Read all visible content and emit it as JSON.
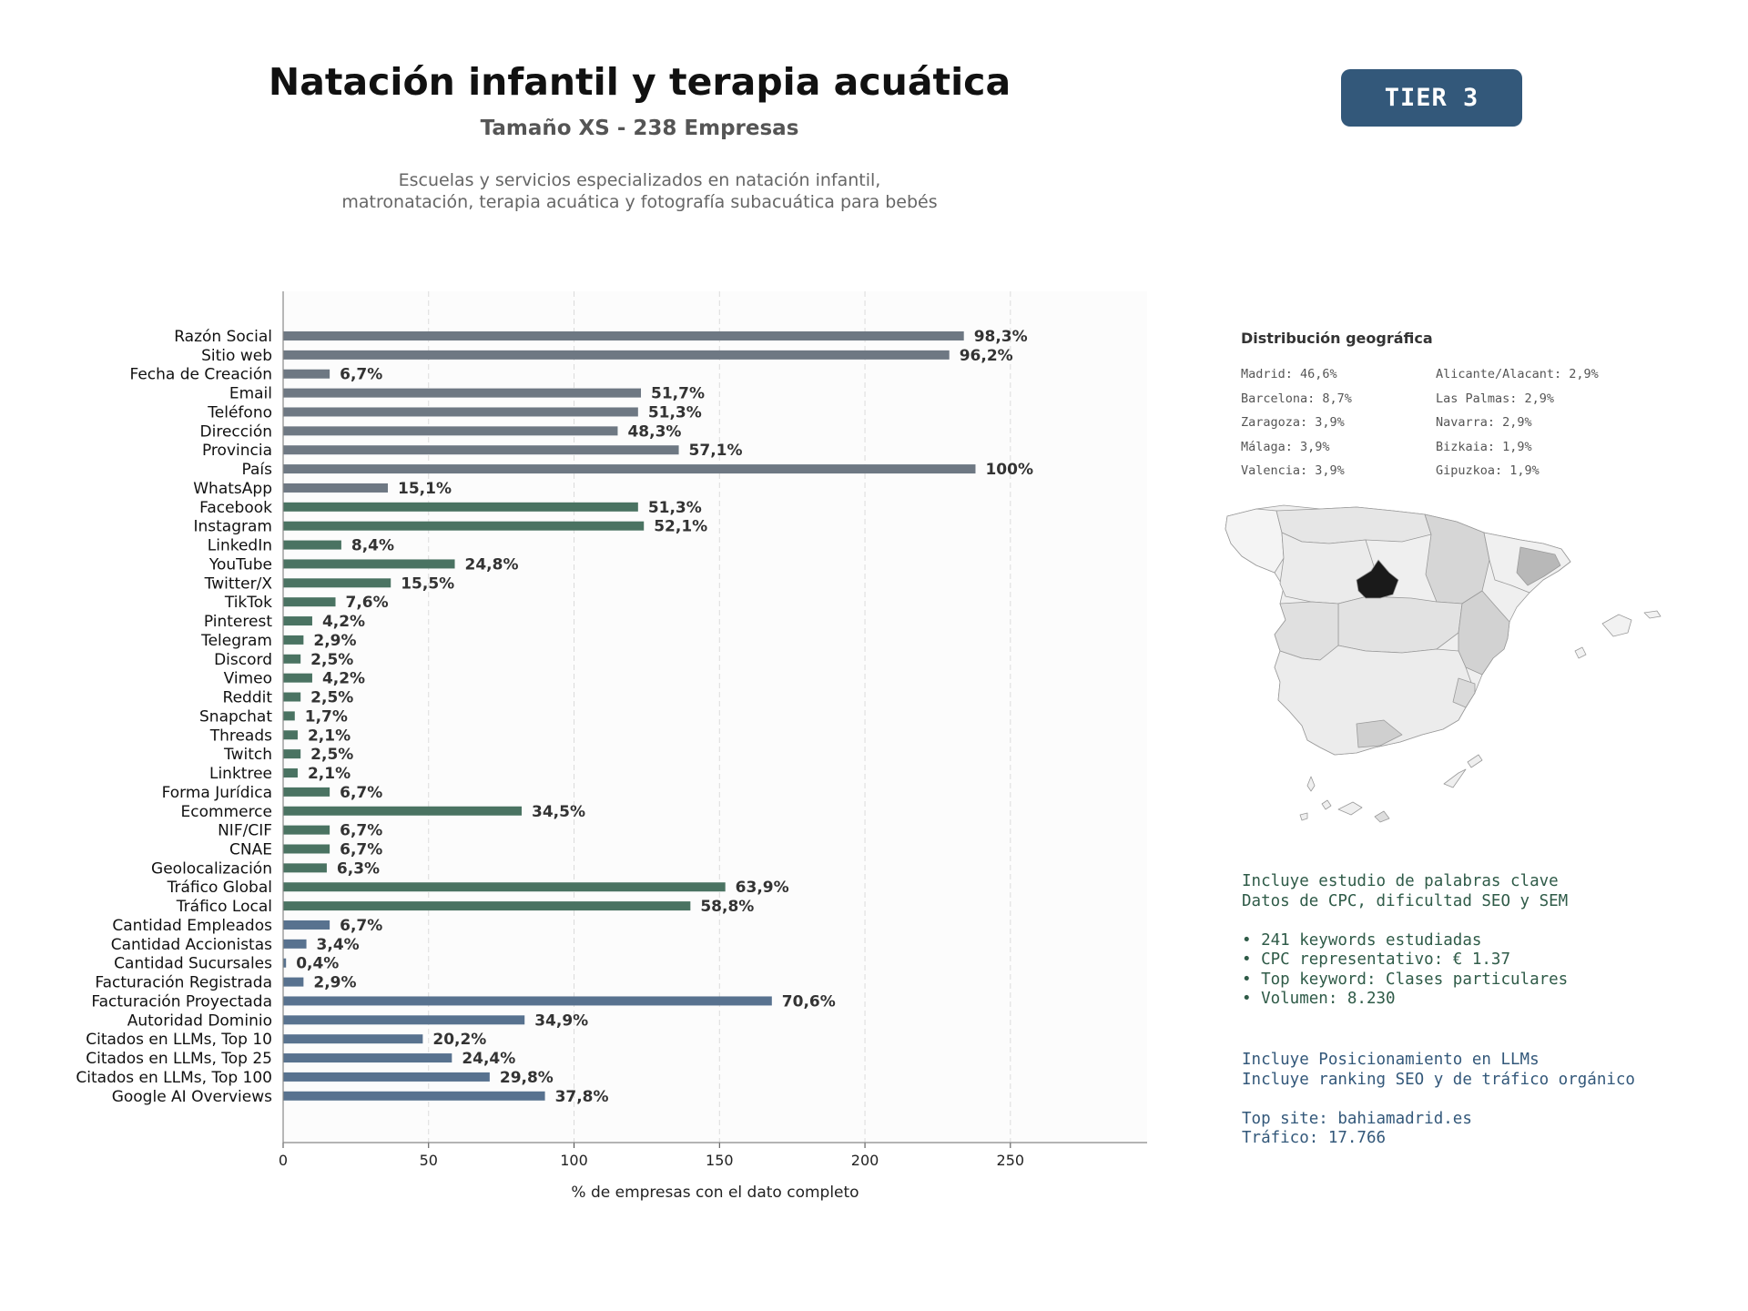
{
  "header": {
    "title": "Natación infantil y terapia acuática",
    "subtitle": "Tamaño XS - 238 Empresas",
    "description_line1": "Escuelas y servicios especializados en natación infantil,",
    "description_line2": "matronatación, terapia acuática y fotografía subacuática para bebés",
    "tier_badge": "TIER 3"
  },
  "colors": {
    "basic": "#6e7883",
    "social": "#4a7362",
    "finance": "#58728f",
    "tier_bg": "#33587a",
    "keywords_text": "#2f5b48",
    "llm_text": "#33587a"
  },
  "chart_data": {
    "type": "bar",
    "orientation": "horizontal",
    "xlabel": "% de empresas con el dato completo",
    "xlim": [
      0,
      297
    ],
    "xticks": [
      0,
      50,
      100,
      150,
      200,
      250
    ],
    "grid": "vertical dashed",
    "categories": [
      "Razón Social",
      "Sitio web",
      "Fecha de Creación",
      "Email",
      "Teléfono",
      "Dirección",
      "Provincia",
      "País",
      "WhatsApp",
      "Facebook",
      "Instagram",
      "LinkedIn",
      "YouTube",
      "Twitter/X",
      "TikTok",
      "Pinterest",
      "Telegram",
      "Discord",
      "Vimeo",
      "Reddit",
      "Snapchat",
      "Threads",
      "Twitch",
      "Linktree",
      "Forma Jurídica",
      "Ecommerce",
      "NIF/CIF",
      "CNAE",
      "Geolocalización",
      "Tráfico Global",
      "Tráfico Local",
      "Cantidad Empleados",
      "Cantidad Accionistas",
      "Cantidad Sucursales",
      "Facturación Registrada",
      "Facturación Proyectada",
      "Autoridad Dominio",
      "Citados en LLMs, Top 10",
      "Citados en LLMs, Top 25",
      "Citados en LLMs, Top 100",
      "Google AI Overviews"
    ],
    "values": [
      234,
      229,
      16,
      123,
      122,
      115,
      136,
      238,
      36,
      122,
      124,
      20,
      59,
      37,
      18,
      10,
      7,
      6,
      10,
      6,
      4,
      5,
      6,
      5,
      16,
      82,
      16,
      16,
      15,
      152,
      140,
      16,
      8,
      1,
      7,
      168,
      83,
      48,
      58,
      71,
      90
    ],
    "labels": [
      "98,3%",
      "96,2%",
      "6,7%",
      "51,7%",
      "51,3%",
      "48,3%",
      "57,1%",
      "100%",
      "15,1%",
      "51,3%",
      "52,1%",
      "8,4%",
      "24,8%",
      "15,5%",
      "7,6%",
      "4,2%",
      "2,9%",
      "2,5%",
      "4,2%",
      "2,5%",
      "1,7%",
      "2,1%",
      "2,5%",
      "2,1%",
      "6,7%",
      "34,5%",
      "6,7%",
      "6,7%",
      "6,3%",
      "63,9%",
      "58,8%",
      "6,7%",
      "3,4%",
      "0,4%",
      "2,9%",
      "70,6%",
      "34,9%",
      "20,2%",
      "24,4%",
      "29,8%",
      "37,8%"
    ],
    "groups": [
      "basic",
      "basic",
      "basic",
      "basic",
      "basic",
      "basic",
      "basic",
      "basic",
      "basic",
      "social",
      "social",
      "social",
      "social",
      "social",
      "social",
      "social",
      "social",
      "social",
      "social",
      "social",
      "social",
      "social",
      "social",
      "social",
      "social",
      "social",
      "social",
      "social",
      "social",
      "social",
      "social",
      "finance",
      "finance",
      "finance",
      "finance",
      "finance",
      "finance",
      "finance",
      "finance",
      "finance",
      "finance"
    ]
  },
  "geo": {
    "title": "Distribución geográfica",
    "col1": [
      "Madrid: 46,6%",
      "Barcelona: 8,7%",
      "Zaragoza: 3,9%",
      "Málaga: 3,9%",
      "Valencia: 3,9%"
    ],
    "col2": [
      "Alicante/Alacant: 2,9%",
      "Las Palmas: 2,9%",
      "Navarra: 2,9%",
      "Bizkaia: 1,9%",
      "Gipuzkoa: 1,9%"
    ]
  },
  "keywords": {
    "line1": "Incluye estudio de palabras clave",
    "line2": "Datos de CPC, dificultad SEO y SEM",
    "bullet1": "• 241 keywords estudiadas",
    "bullet2": "• CPC representativo: € 1.37",
    "bullet3": "• Top keyword: Clases particulares",
    "bullet4": "• Volumen: 8.230"
  },
  "llm": {
    "line1": "Incluye Posicionamiento en LLMs",
    "line2": "Incluye ranking SEO y de tráfico orgánico",
    "top_site": "Top site: bahiamadrid.es",
    "traffic": "Tráfico: 17.766"
  }
}
